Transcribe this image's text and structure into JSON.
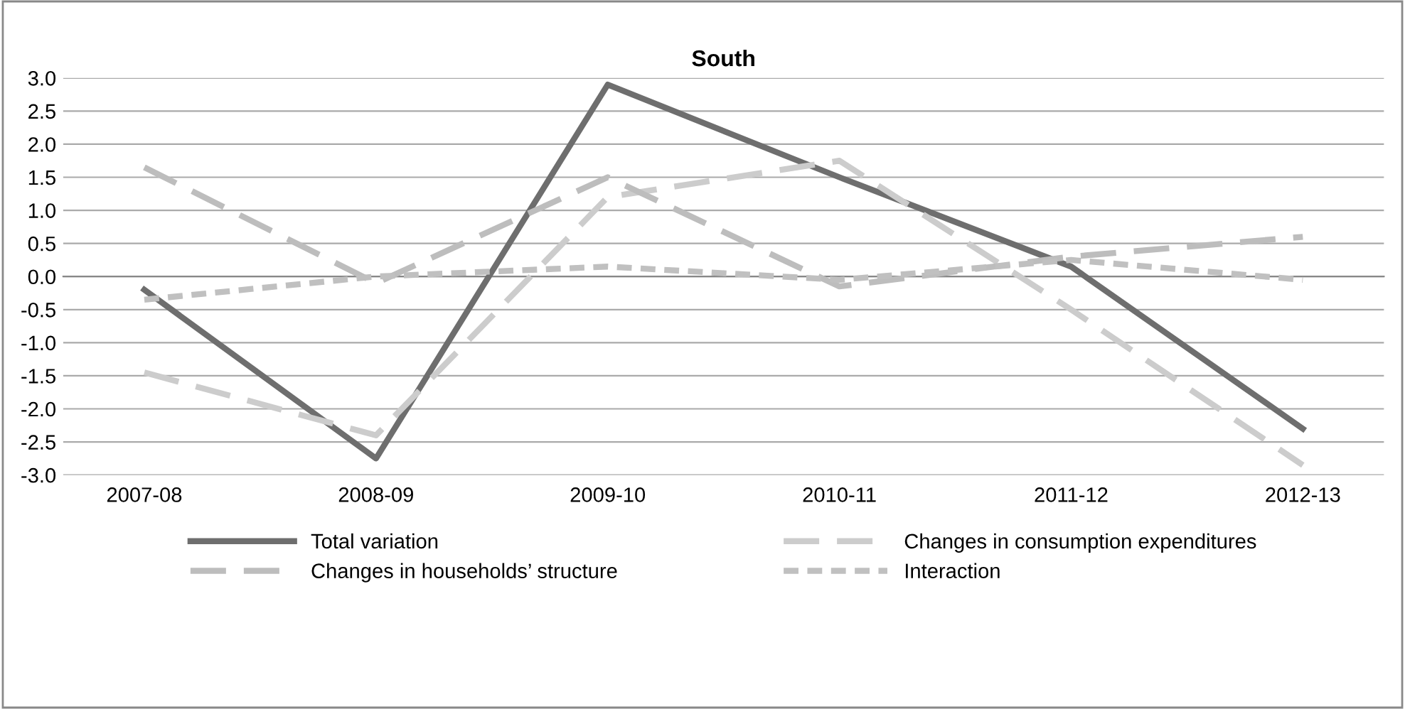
{
  "chart_data": {
    "type": "line",
    "title": "South",
    "categories": [
      "2007-08",
      "2008-09",
      "2009-10",
      "2010-11",
      "2011-12",
      "2012-13"
    ],
    "series": [
      {
        "name": "Total variation",
        "color": "#6e6e6e",
        "line_style": "solid",
        "values": [
          -0.2,
          -2.75,
          2.9,
          1.5,
          0.15,
          -2.3
        ]
      },
      {
        "name": "Changes in consumption expenditures",
        "color": "#cccccc",
        "line_style": "dashed",
        "values": [
          -1.45,
          -2.4,
          1.2,
          1.75,
          -0.5,
          -2.85
        ]
      },
      {
        "name": "Changes in households’ structure",
        "color": "#bdbdbd",
        "line_style": "dashed",
        "values": [
          1.65,
          -0.1,
          1.5,
          -0.15,
          0.3,
          0.6
        ]
      },
      {
        "name": "Interaction",
        "color": "#c0c0c0",
        "line_style": "dotted",
        "values": [
          -0.35,
          0.0,
          0.15,
          -0.05,
          0.25,
          -0.05
        ]
      }
    ],
    "ylim": [
      -3.0,
      3.0
    ],
    "yticks": [
      {
        "value": -3.0,
        "label": "-3.0"
      },
      {
        "value": -2.5,
        "label": "-2.5"
      },
      {
        "value": -2.0,
        "label": "-2.0"
      },
      {
        "value": -1.5,
        "label": "-1.5"
      },
      {
        "value": -1.0,
        "label": "-1.0"
      },
      {
        "value": -0.5,
        "label": "-0.5"
      },
      {
        "value": 0.0,
        "label": "0.0"
      },
      {
        "value": 0.5,
        "label": "0.5"
      },
      {
        "value": 1.0,
        "label": "1.0"
      },
      {
        "value": 1.5,
        "label": "1.5"
      },
      {
        "value": 2.0,
        "label": "2.0"
      },
      {
        "value": 2.5,
        "label": "2.5"
      },
      {
        "value": 3.0,
        "label": "3.0"
      }
    ],
    "grid": "y",
    "legend": "bottom",
    "marker": "none"
  }
}
